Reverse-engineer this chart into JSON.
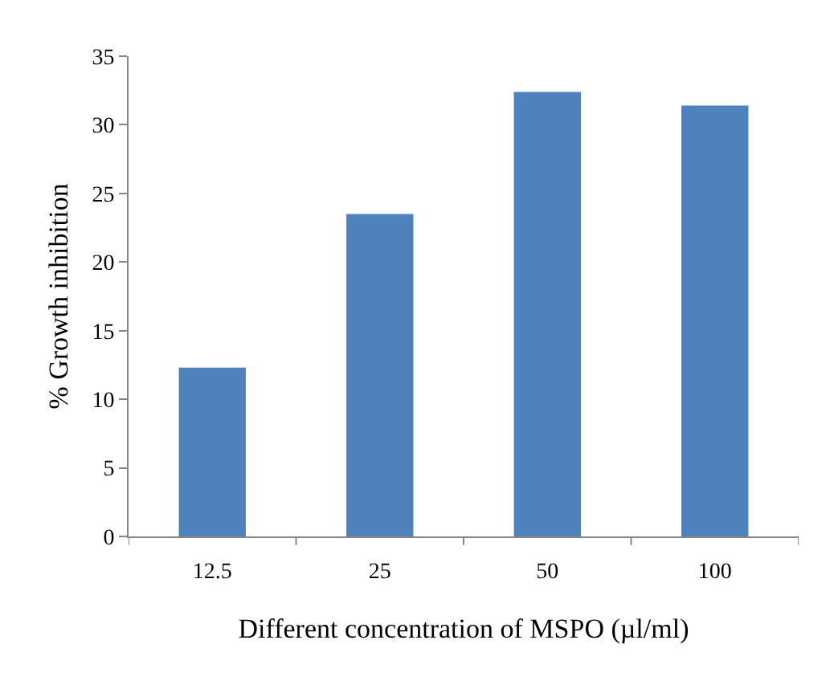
{
  "chart_data": {
    "type": "bar",
    "xlabel": "Different concentration of MSPO (µl/ml)",
    "ylabel": "% Growth inhibition",
    "categories": [
      "12.5",
      "25",
      "50",
      "100"
    ],
    "values": [
      12.3,
      23.5,
      32.4,
      31.4
    ],
    "color": "#4f81bd",
    "ylim": [
      0,
      35
    ],
    "yticks": [
      0,
      5,
      10,
      15,
      20,
      25,
      30,
      35
    ]
  }
}
